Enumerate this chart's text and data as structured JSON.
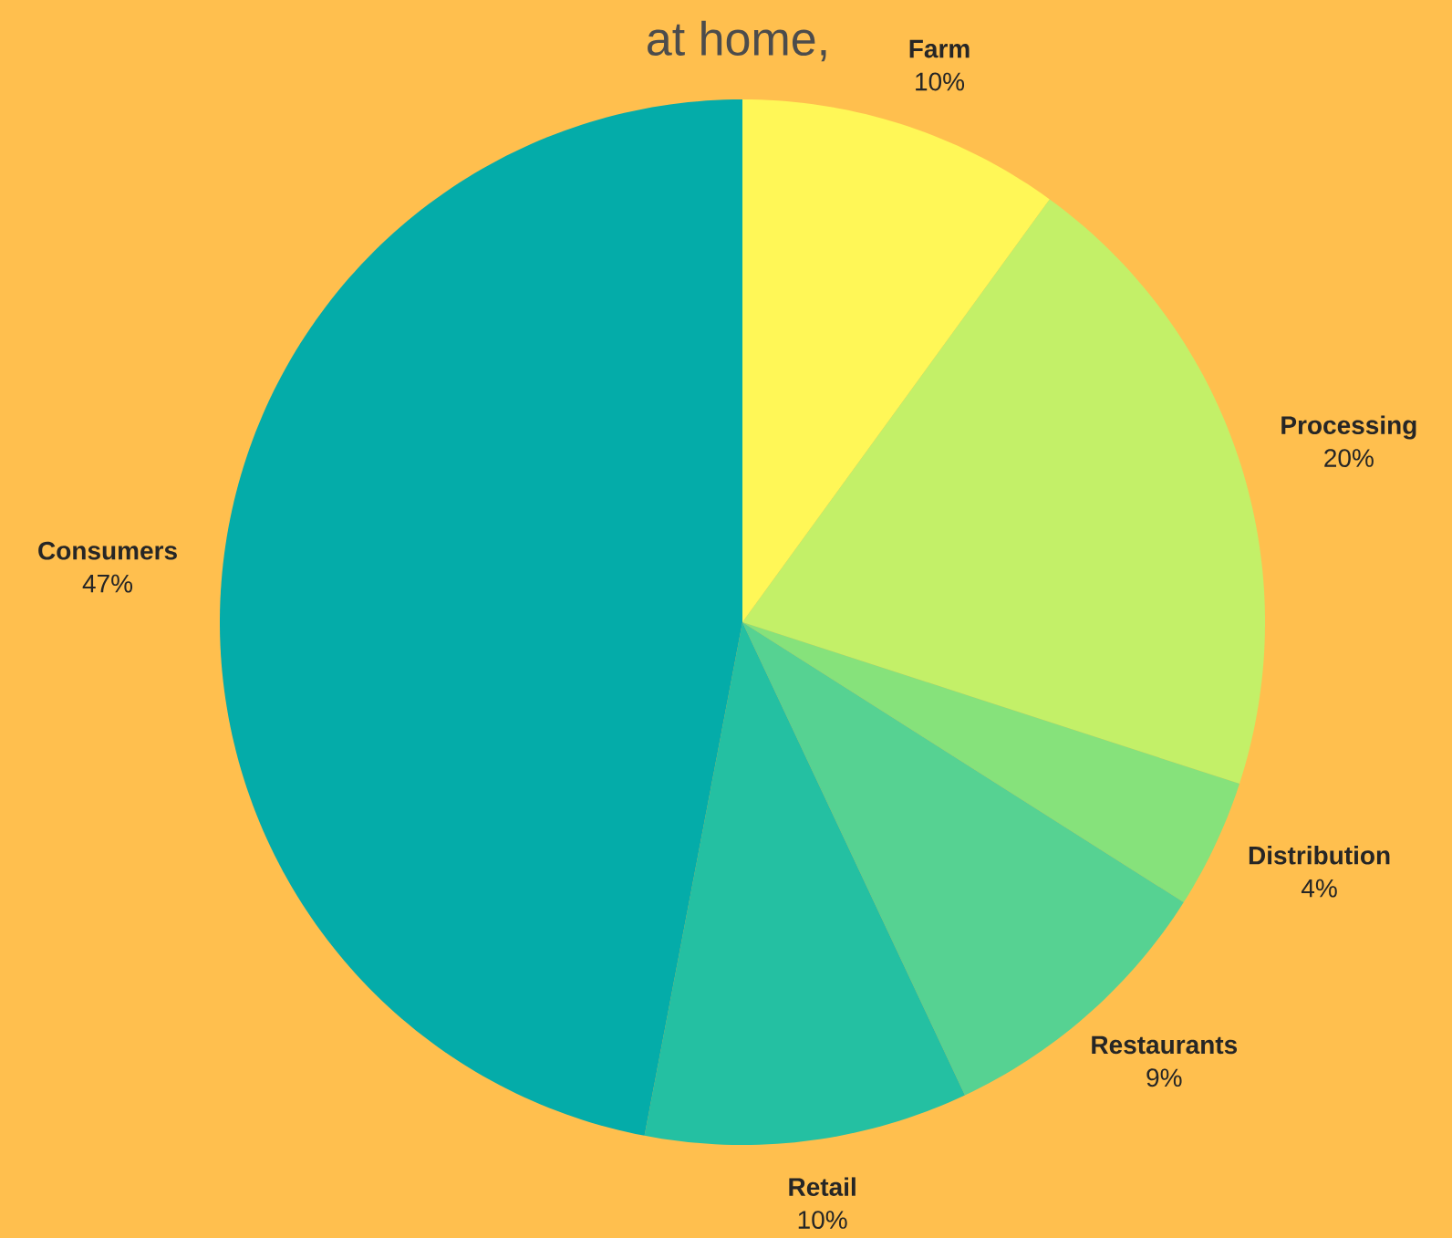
{
  "chart_data": {
    "type": "pie",
    "title": "at home,",
    "categories": [
      "Farm",
      "Processing",
      "Distribution",
      "Restaurants",
      "Retail",
      "Consumers"
    ],
    "values": [
      10,
      20,
      4,
      9,
      10,
      47
    ],
    "value_labels": [
      "10%",
      "20%",
      "4%",
      "9%",
      "10%",
      "47%"
    ],
    "colors": [
      "#fff757",
      "#c3f068",
      "#86e27b",
      "#56d292",
      "#24c0a2",
      "#04aca9"
    ]
  }
}
